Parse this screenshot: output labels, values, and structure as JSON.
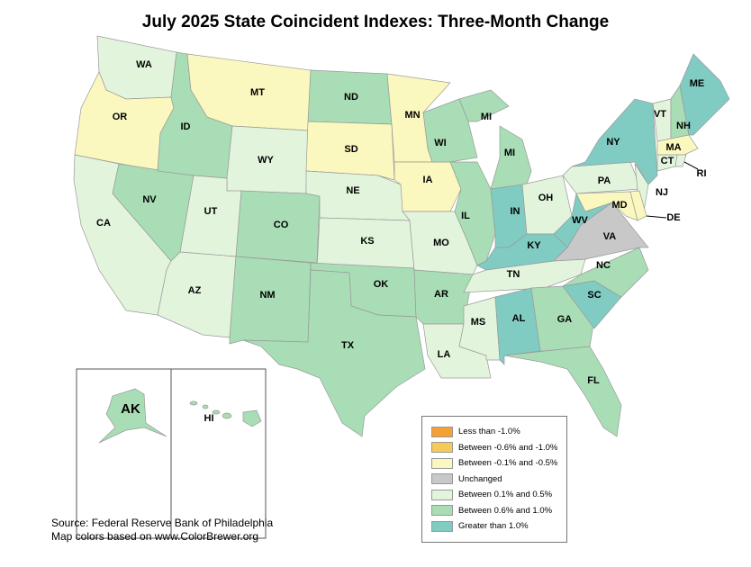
{
  "title": "July 2025 State Coincident Indexes: Three-Month Change",
  "source_lines": [
    "Source: Federal Reserve Bank of Philadelphia",
    "Map colors based on www.ColorBrewer.org"
  ],
  "legend": [
    {
      "key": "c1",
      "label": "Less than -1.0%",
      "color": "#F5A033"
    },
    {
      "key": "c2",
      "label": "Between -0.6% and -1.0%",
      "color": "#F7C957"
    },
    {
      "key": "c3",
      "label": "Between -0.1% and -0.5%",
      "color": "#FAF8BE"
    },
    {
      "key": "c4",
      "label": "Unchanged",
      "color": "#C8C8C8"
    },
    {
      "key": "c5",
      "label": "Between 0.1% and 0.5%",
      "color": "#E3F4DD"
    },
    {
      "key": "c6",
      "label": "Between 0.6% and 1.0%",
      "color": "#A8DDB5"
    },
    {
      "key": "c7",
      "label": "Greater than 1.0%",
      "color": "#80CBC2"
    }
  ],
  "states": {
    "WA": "c5",
    "OR": "c3",
    "CA": "c5",
    "NV": "c6",
    "ID": "c6",
    "MT": "c3",
    "WY": "c5",
    "UT": "c5",
    "AZ": "c5",
    "CO": "c6",
    "NM": "c6",
    "ND": "c6",
    "SD": "c3",
    "NE": "c5",
    "KS": "c5",
    "OK": "c6",
    "TX": "c6",
    "MN": "c3",
    "IA": "c3",
    "MO": "c5",
    "AR": "c6",
    "LA": "c5",
    "WI": "c6",
    "MI": "c6",
    "IL": "c6",
    "IN": "c7",
    "OH": "c5",
    "KY": "c7",
    "TN": "c5",
    "MS": "c5",
    "AL": "c7",
    "GA": "c6",
    "FL": "c6",
    "SC": "c7",
    "NC": "c6",
    "VA": "c4",
    "WV": "c7",
    "PA": "c5",
    "NY": "c7",
    "NJ": "c5",
    "MD": "c3",
    "DE": "c3",
    "VT": "c5",
    "NH": "c6",
    "ME": "c7",
    "MA": "c3",
    "CT": "c5",
    "RI": "c5",
    "AK": "c6",
    "HI": "c6"
  }
}
